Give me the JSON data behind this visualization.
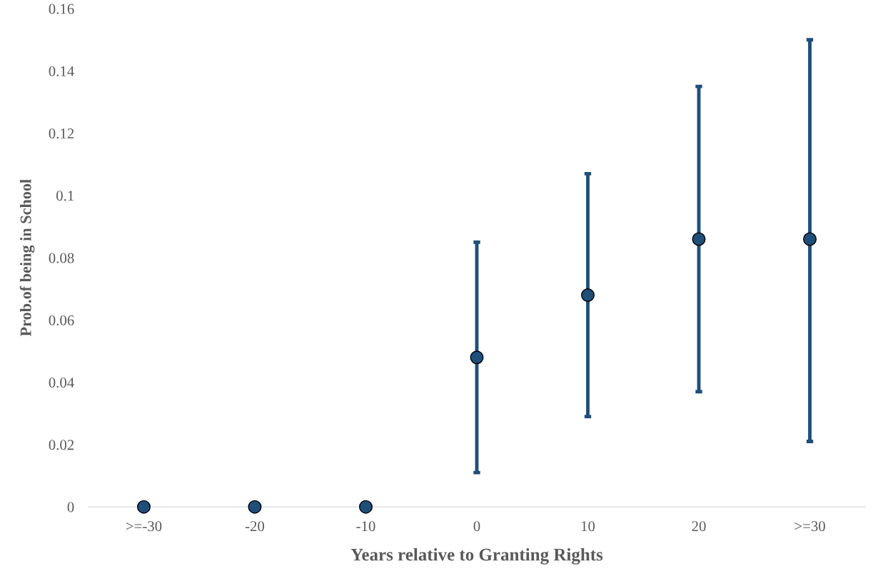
{
  "chart_data": {
    "type": "scatter",
    "xlabel": "Years relative to Granting Rights",
    "ylabel": "Prob.of being in School",
    "categories": [
      ">=-30",
      "-20",
      "-10",
      "0",
      "10",
      "20",
      ">=30"
    ],
    "series": [
      {
        "color": "#1f4e79",
        "values": [
          0,
          0,
          0,
          0.048,
          0.068,
          0.086,
          0.086
        ],
        "errors": [
          null,
          null,
          null,
          [
            0.011,
            0.085
          ],
          [
            0.029,
            0.107
          ],
          [
            0.037,
            0.135
          ],
          [
            0.021,
            0.15
          ]
        ]
      }
    ],
    "ylim": [
      0,
      0.16
    ],
    "yticks": [
      0,
      0.02,
      0.04,
      0.06,
      0.08,
      0.1,
      0.12,
      0.14,
      0.16
    ],
    "marker": "circle",
    "grid": false,
    "legend": false
  }
}
